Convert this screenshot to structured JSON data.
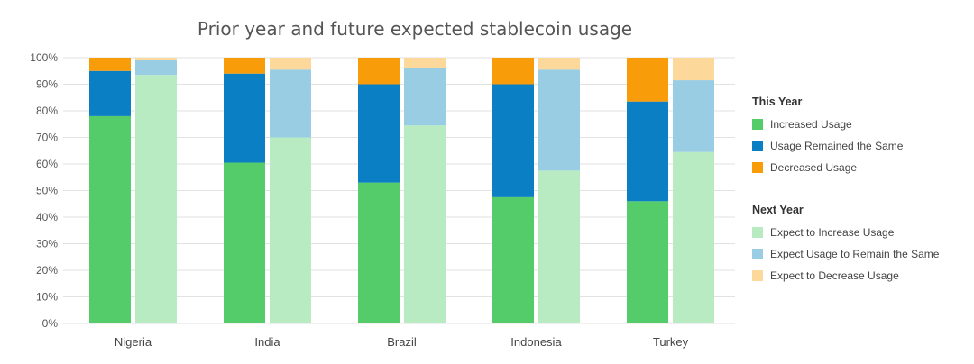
{
  "chart_data": {
    "type": "bar",
    "title": "Prior year and future expected stablecoin usage",
    "xlabel": "",
    "ylabel": "",
    "ylim": [
      0,
      100
    ],
    "y_tick_format": "percent",
    "y_ticks": [
      "0%",
      "10%",
      "20%",
      "30%",
      "40%",
      "50%",
      "60%",
      "70%",
      "80%",
      "90%",
      "100%"
    ],
    "grid": true,
    "legend_position": "right",
    "categories": [
      "Nigeria",
      "India",
      "Brazil",
      "Indonesia",
      "Turkey"
    ],
    "stacks": [
      {
        "group": "This Year",
        "series": [
          {
            "name": "Increased Usage",
            "color": "#55cc6a",
            "values": [
              78,
              60.5,
              53,
              47.5,
              46
            ]
          },
          {
            "name": "Usage Remained the Same",
            "color": "#0a7fc4",
            "values": [
              17,
              33.5,
              37,
              42.5,
              37.5
            ]
          },
          {
            "name": "Decreased Usage",
            "color": "#f99c0a",
            "values": [
              5,
              6,
              10,
              10,
              16.5
            ]
          }
        ]
      },
      {
        "group": "Next Year",
        "series": [
          {
            "name": "Expect to Increase Usage",
            "color": "#b9ebc3",
            "values": [
              93.5,
              70,
              74.5,
              57.5,
              64.5
            ]
          },
          {
            "name": "Expect Usage to Remain the Same",
            "color": "#99cde4",
            "values": [
              5.5,
              25.5,
              21.5,
              38,
              27
            ]
          },
          {
            "name": "Expect to Decrease Usage",
            "color": "#fcd89b",
            "values": [
              1,
              4.5,
              4,
              4.5,
              8.5
            ]
          }
        ]
      }
    ]
  },
  "legend": {
    "this_year_heading": "This Year",
    "next_year_heading": "Next Year"
  }
}
